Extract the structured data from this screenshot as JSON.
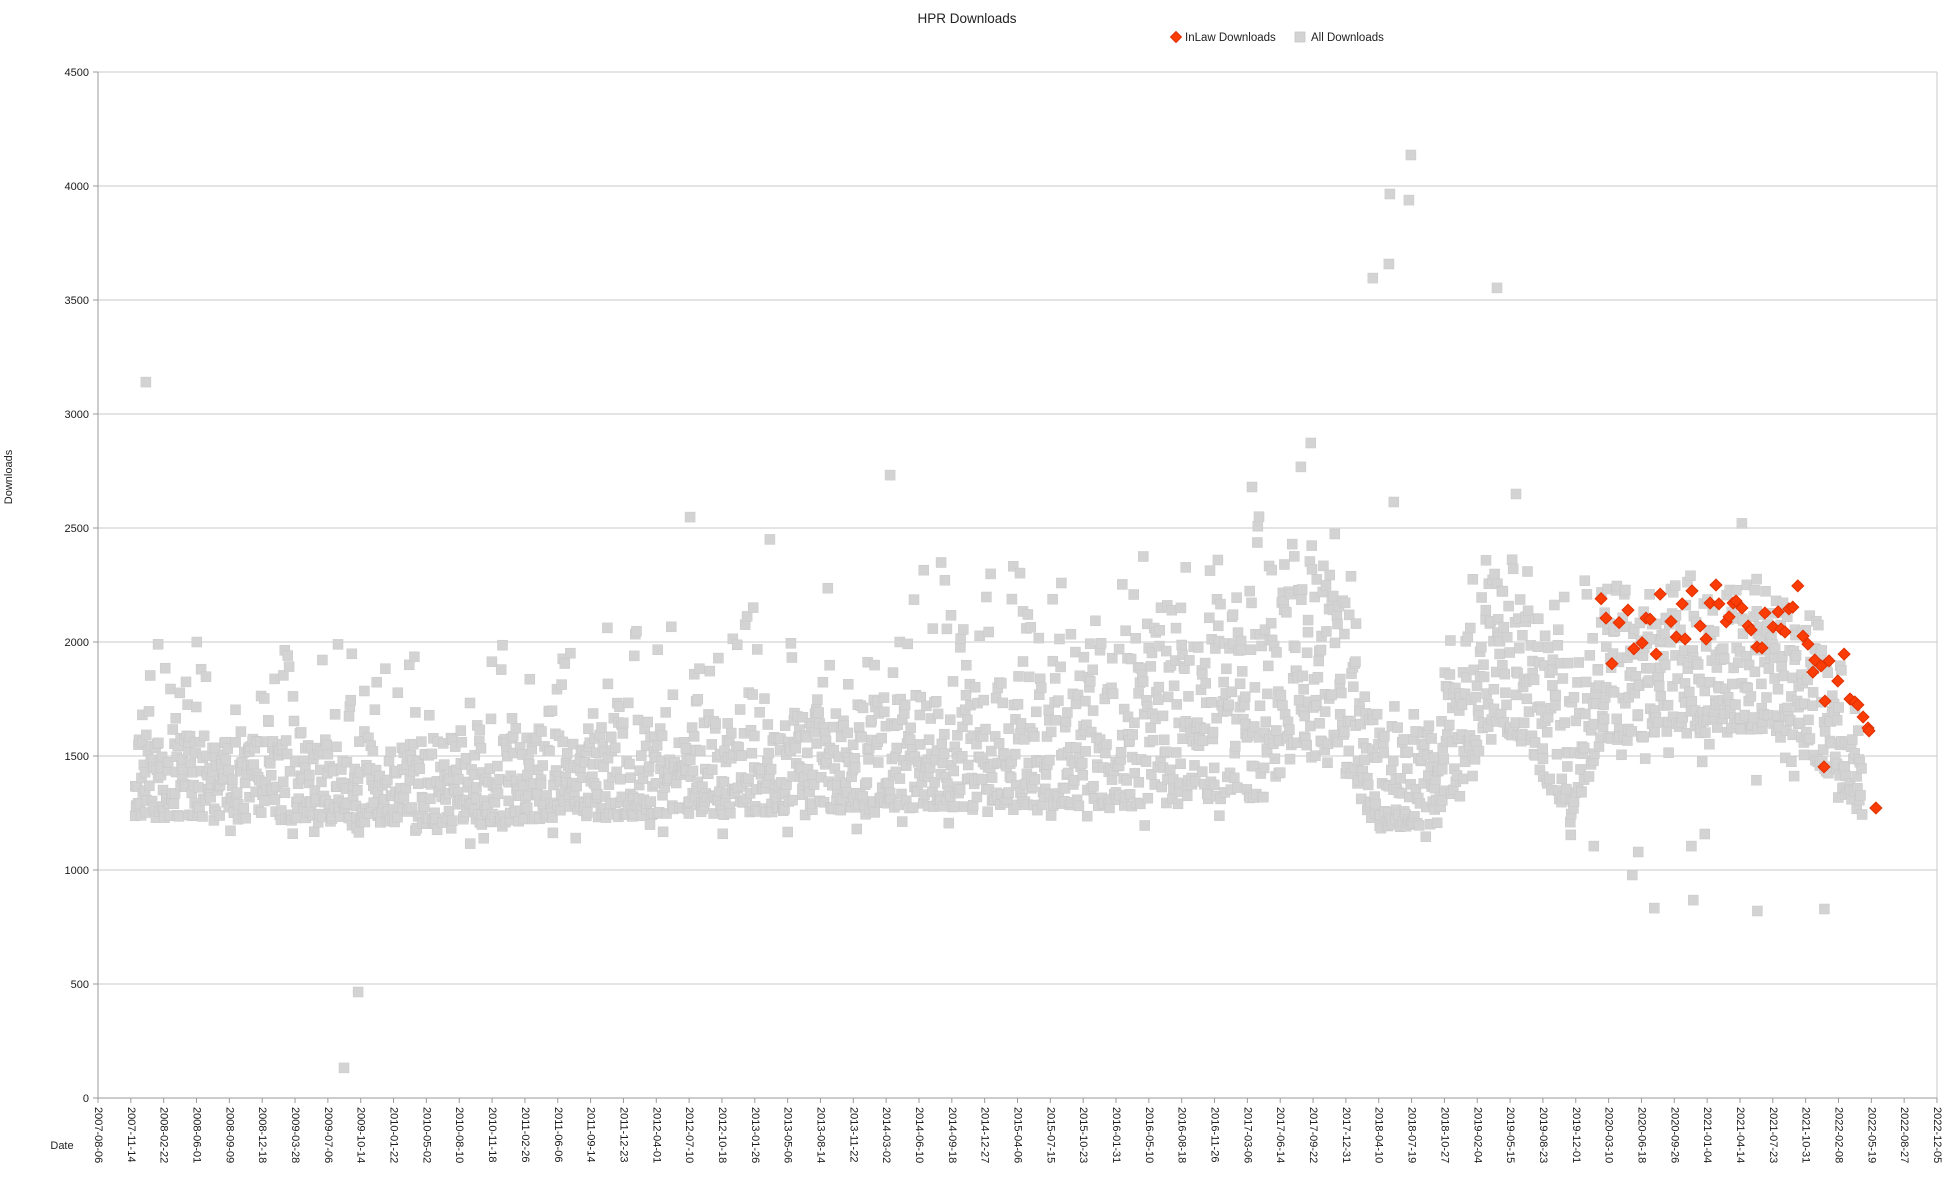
{
  "title": "HPR Downloads",
  "legend": [
    {
      "label": "InLaw Downloads",
      "marker": "diamond",
      "color": "#fb3d05"
    },
    {
      "label": "All Downloads",
      "marker": "square",
      "color": "#d3d3d3"
    }
  ],
  "chart_data": {
    "type": "scatter",
    "title": "HPR Downloads",
    "xlabel": "Date",
    "ylabel": "Downloads",
    "grid": "horizontal",
    "legend_position": "top-center",
    "ylim": [
      0,
      4500
    ],
    "y_tick_step": 500,
    "y_tick_labels": [
      "0",
      "500",
      "1000",
      "1500",
      "2000",
      "2500",
      "3000",
      "3500",
      "4000",
      "4500"
    ],
    "x_epoch": "2007-08-06",
    "x_tick_interval_days": 100,
    "x_range_days": [
      0,
      5600
    ],
    "x_tick_labels": [
      "2007-08-06",
      "2007-11-14",
      "2008-02-22",
      "2008-06-01",
      "2008-09-09",
      "2008-12-18",
      "2009-03-28",
      "2009-07-06",
      "2009-10-14",
      "2010-01-22",
      "2010-05-02",
      "2010-08-10",
      "2010-11-18",
      "2011-02-26",
      "2011-06-06",
      "2011-09-14",
      "2011-12-23",
      "2012-04-01",
      "2012-07-10",
      "2012-10-18",
      "2013-01-26",
      "2013-05-06",
      "2013-08-14",
      "2013-11-22",
      "2014-03-02",
      "2014-06-10",
      "2014-09-18",
      "2014-12-27",
      "2015-04-06",
      "2015-07-15",
      "2015-10-23",
      "2016-01-31",
      "2016-05-10",
      "2016-08-18",
      "2016-11-26",
      "2017-03-06",
      "2017-06-14",
      "2017-09-22",
      "2017-12-31",
      "2018-04-10",
      "2018-07-19",
      "2018-10-27",
      "2019-02-04",
      "2019-05-15",
      "2019-08-23",
      "2019-12-01",
      "2020-03-10",
      "2020-06-18",
      "2020-09-26",
      "2021-01-04",
      "2021-04-14",
      "2021-07-23",
      "2021-10-31",
      "2022-02-08",
      "2022-05-19",
      "2022-08-27",
      "2022-12-05"
    ],
    "series": [
      {
        "name": "All Downloads",
        "marker": "square",
        "color": "#d3d3d3",
        "approximation_note": "dense daily scatter (~1 point/day, 2007-11 to 2022-06) approximated by a band envelope plus explicit outliers; values in downloads, x in days since 2007-08-06",
        "band_envelope_keyframes_day_lo_hi_top": [
          [
            112,
            1230,
            1560,
            1860
          ],
          [
            500,
            1220,
            1560,
            2010
          ],
          [
            1100,
            1200,
            1560,
            1960
          ],
          [
            1700,
            1240,
            1620,
            2100
          ],
          [
            2200,
            1260,
            1700,
            2260
          ],
          [
            2700,
            1280,
            1800,
            2420
          ],
          [
            3200,
            1280,
            1950,
            2440
          ],
          [
            3550,
            1320,
            2060,
            2570
          ],
          [
            3700,
            1500,
            2350,
            2610
          ],
          [
            3790,
            1450,
            2300,
            2550
          ],
          [
            3850,
            1280,
            1800,
            2100
          ],
          [
            3900,
            1180,
            1560,
            1800
          ],
          [
            4060,
            1200,
            1600,
            1850
          ],
          [
            4150,
            1400,
            1950,
            2200
          ],
          [
            4240,
            1650,
            2250,
            2460
          ],
          [
            4350,
            1550,
            2150,
            2360
          ],
          [
            4440,
            1300,
            1900,
            2150
          ],
          [
            4510,
            1280,
            1800,
            2300
          ],
          [
            4580,
            1550,
            2050,
            2280
          ],
          [
            4800,
            1600,
            2100,
            2300
          ],
          [
            5100,
            1600,
            2100,
            2280
          ],
          [
            5200,
            1500,
            2000,
            2200
          ],
          [
            5300,
            1380,
            1850,
            2050
          ],
          [
            5340,
            1300,
            1700,
            1900
          ],
          [
            5372,
            1220,
            1520,
            1650
          ]
        ],
        "outlier_points_day_value": [
          [
            146,
            3140
          ],
          [
            183,
            1990
          ],
          [
            301,
            2000
          ],
          [
            749,
            132
          ],
          [
            792,
            465
          ],
          [
            1803,
            2548
          ],
          [
            2046,
            2450
          ],
          [
            2412,
            2732
          ],
          [
            3514,
            2680
          ],
          [
            3663,
            2768
          ],
          [
            3693,
            2873
          ],
          [
            3882,
            3596
          ],
          [
            3931,
            3658
          ],
          [
            3934,
            3965
          ],
          [
            3946,
            2614
          ],
          [
            3992,
            3938
          ],
          [
            3998,
            4136
          ],
          [
            4260,
            3553
          ],
          [
            4318,
            2649
          ],
          [
            4485,
            1154
          ],
          [
            4555,
            1105
          ],
          [
            4672,
            978
          ],
          [
            4690,
            1079
          ],
          [
            4739,
            833
          ],
          [
            4852,
            1105
          ],
          [
            4858,
            868
          ],
          [
            4885,
            1474
          ],
          [
            4893,
            1158
          ],
          [
            5006,
            2520
          ],
          [
            5050,
            1394
          ],
          [
            5053,
            820
          ],
          [
            5165,
            1412
          ],
          [
            5257,
            829
          ]
        ],
        "sample_step_days": 2,
        "seed": 7
      },
      {
        "name": "InLaw Downloads",
        "marker": "diamond",
        "color": "#fb3d05",
        "points_day_value": [
          [
            4577,
            2190
          ],
          [
            4592,
            2105
          ],
          [
            4610,
            1905
          ],
          [
            4632,
            2085
          ],
          [
            4659,
            2140
          ],
          [
            4677,
            1970
          ],
          [
            4702,
            1996
          ],
          [
            4714,
            2105
          ],
          [
            4726,
            2100
          ],
          [
            4745,
            1947
          ],
          [
            4757,
            2210
          ],
          [
            4790,
            2090
          ],
          [
            4806,
            2022
          ],
          [
            4824,
            2167
          ],
          [
            4833,
            2013
          ],
          [
            4854,
            2224
          ],
          [
            4879,
            2070
          ],
          [
            4897,
            2013
          ],
          [
            4909,
            2171
          ],
          [
            4927,
            2250
          ],
          [
            4936,
            2167
          ],
          [
            4958,
            2088
          ],
          [
            4967,
            2110
          ],
          [
            4979,
            2171
          ],
          [
            4988,
            2180
          ],
          [
            5006,
            2149
          ],
          [
            5025,
            2070
          ],
          [
            5034,
            2053
          ],
          [
            5052,
            1978
          ],
          [
            5067,
            1974
          ],
          [
            5076,
            2127
          ],
          [
            5101,
            2066
          ],
          [
            5116,
            2132
          ],
          [
            5125,
            2057
          ],
          [
            5137,
            2044
          ],
          [
            5149,
            2145
          ],
          [
            5161,
            2153
          ],
          [
            5176,
            2246
          ],
          [
            5192,
            2026
          ],
          [
            5207,
            1991
          ],
          [
            5222,
            1868
          ],
          [
            5228,
            1921
          ],
          [
            5247,
            1895
          ],
          [
            5256,
            1452
          ],
          [
            5259,
            1741
          ],
          [
            5271,
            1917
          ],
          [
            5298,
            1829
          ],
          [
            5317,
            1947
          ],
          [
            5335,
            1750
          ],
          [
            5350,
            1737
          ],
          [
            5359,
            1724
          ],
          [
            5375,
            1671
          ],
          [
            5390,
            1623
          ],
          [
            5393,
            1610
          ],
          [
            5414,
            1272
          ]
        ]
      }
    ],
    "colors": {
      "gridline": "#cacaca",
      "axis": "#9b9b9b",
      "all_downloads": "#d3d3d3",
      "inlaw_downloads": "#fb3d05"
    }
  }
}
